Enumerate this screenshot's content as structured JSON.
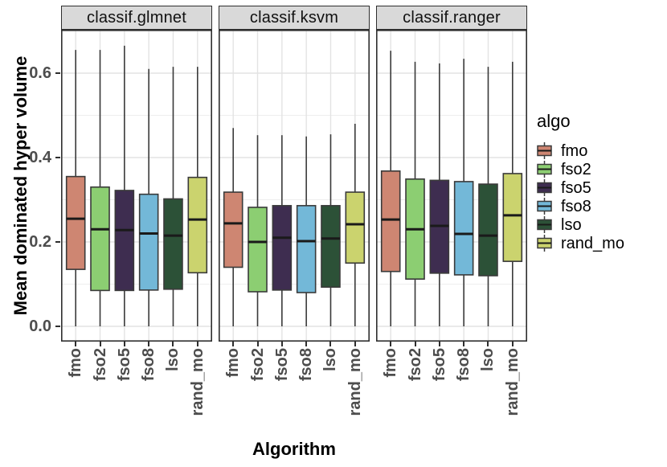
{
  "chart_data": {
    "type": "boxplot",
    "xlabel": "Algorithm",
    "ylabel": "Mean dominated hyper volume",
    "categories": [
      "fmo",
      "fso2",
      "fso5",
      "fso8",
      "lso",
      "rand_mo"
    ],
    "ytick_labels": [
      "0.6",
      "0.4",
      "0.2",
      "0.0"
    ],
    "yticks": [
      0.6,
      0.4,
      0.2,
      0.0
    ],
    "ylim": [
      -0.036,
      0.7
    ],
    "grid": {
      "major_y": [
        0.0,
        0.2,
        0.4,
        0.6
      ],
      "minor_y": [
        0.1,
        0.3,
        0.5,
        0.7
      ],
      "vertical_on_categories": true
    },
    "legend": {
      "title": "algo",
      "position": "right",
      "entries": [
        "fmo",
        "fso2",
        "fso5",
        "fso8",
        "lso",
        "rand_mo"
      ]
    },
    "palette": {
      "fmo": "#CE8672",
      "fso2": "#8CCE72",
      "fso5": "#3E2D50",
      "fso8": "#73B8D8",
      "lso": "#2C5137",
      "rand_mo": "#CBD36E"
    },
    "style_colors": {
      "strip_bg": "#d9d9d9",
      "panel_border": "#2e2e2e",
      "grid_major": "#e3e3e3",
      "grid_minor": "#eeeeee",
      "box_stroke": "#3a3a3a",
      "median_line": "#1a1a1a",
      "axis_text": "#4d4d4d"
    },
    "facets": [
      {
        "label": "classif.glmnet",
        "boxes": [
          {
            "algo": "fmo",
            "whisker_low": 0.0,
            "q1": 0.135,
            "median": 0.255,
            "q3": 0.355,
            "whisker_high": 0.655
          },
          {
            "algo": "fso2",
            "whisker_low": 0.0,
            "q1": 0.085,
            "median": 0.23,
            "q3": 0.33,
            "whisker_high": 0.655
          },
          {
            "algo": "fso5",
            "whisker_low": 0.0,
            "q1": 0.085,
            "median": 0.228,
            "q3": 0.322,
            "whisker_high": 0.665
          },
          {
            "algo": "fso8",
            "whisker_low": 0.0,
            "q1": 0.086,
            "median": 0.22,
            "q3": 0.313,
            "whisker_high": 0.61
          },
          {
            "algo": "lso",
            "whisker_low": 0.0,
            "q1": 0.088,
            "median": 0.215,
            "q3": 0.302,
            "whisker_high": 0.615
          },
          {
            "algo": "rand_mo",
            "whisker_low": 0.0,
            "q1": 0.127,
            "median": 0.253,
            "q3": 0.353,
            "whisker_high": 0.615
          }
        ]
      },
      {
        "label": "classif.ksvm",
        "boxes": [
          {
            "algo": "fmo",
            "whisker_low": 0.0,
            "q1": 0.14,
            "median": 0.244,
            "q3": 0.318,
            "whisker_high": 0.47
          },
          {
            "algo": "fso2",
            "whisker_low": 0.0,
            "q1": 0.082,
            "median": 0.2,
            "q3": 0.282,
            "whisker_high": 0.453
          },
          {
            "algo": "fso5",
            "whisker_low": 0.0,
            "q1": 0.086,
            "median": 0.21,
            "q3": 0.286,
            "whisker_high": 0.453
          },
          {
            "algo": "fso8",
            "whisker_low": 0.0,
            "q1": 0.08,
            "median": 0.202,
            "q3": 0.286,
            "whisker_high": 0.45
          },
          {
            "algo": "lso",
            "whisker_low": 0.0,
            "q1": 0.093,
            "median": 0.208,
            "q3": 0.286,
            "whisker_high": 0.455
          },
          {
            "algo": "rand_mo",
            "whisker_low": 0.0,
            "q1": 0.15,
            "median": 0.242,
            "q3": 0.318,
            "whisker_high": 0.48
          }
        ]
      },
      {
        "label": "classif.ranger",
        "boxes": [
          {
            "algo": "fmo",
            "whisker_low": 0.0,
            "q1": 0.13,
            "median": 0.253,
            "q3": 0.368,
            "whisker_high": 0.653
          },
          {
            "algo": "fso2",
            "whisker_low": 0.0,
            "q1": 0.112,
            "median": 0.23,
            "q3": 0.349,
            "whisker_high": 0.627
          },
          {
            "algo": "fso5",
            "whisker_low": 0.0,
            "q1": 0.126,
            "median": 0.238,
            "q3": 0.346,
            "whisker_high": 0.623
          },
          {
            "algo": "fso8",
            "whisker_low": 0.0,
            "q1": 0.122,
            "median": 0.219,
            "q3": 0.343,
            "whisker_high": 0.634
          },
          {
            "algo": "lso",
            "whisker_low": 0.0,
            "q1": 0.12,
            "median": 0.215,
            "q3": 0.337,
            "whisker_high": 0.615
          },
          {
            "algo": "rand_mo",
            "whisker_low": 0.0,
            "q1": 0.154,
            "median": 0.263,
            "q3": 0.362,
            "whisker_high": 0.627
          }
        ]
      }
    ]
  }
}
